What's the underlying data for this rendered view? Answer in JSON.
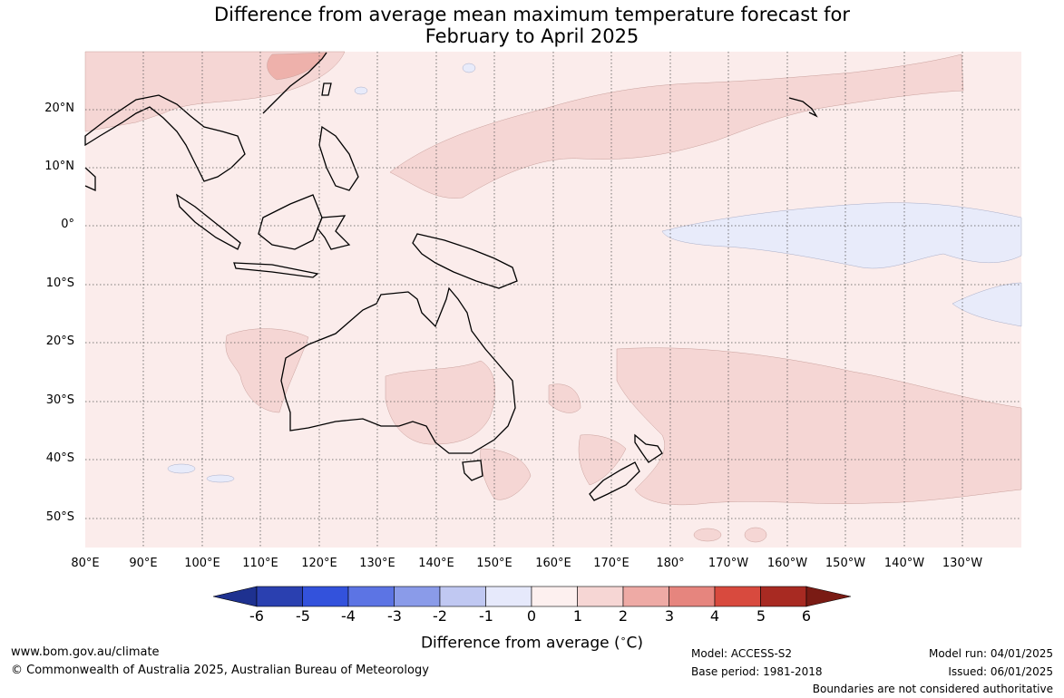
{
  "title_line1": "Difference from average mean maximum temperature forecast for",
  "title_line2": "February to April 2025",
  "lat_labels": [
    "20°N",
    "10°N",
    "0°",
    "10°S",
    "20°S",
    "30°S",
    "40°S",
    "50°S"
  ],
  "lon_labels": [
    "80°E",
    "90°E",
    "100°E",
    "110°E",
    "120°E",
    "130°E",
    "140°E",
    "150°E",
    "160°E",
    "170°E",
    "180°",
    "170°W",
    "160°W",
    "150°W",
    "140°W",
    "130°W"
  ],
  "colorbar": {
    "ticks": [
      "-6",
      "-5",
      "-4",
      "-3",
      "-2",
      "-1",
      "0",
      "1",
      "2",
      "3",
      "4",
      "5",
      "6"
    ],
    "colors": [
      "#1e3190",
      "#2a40b0",
      "#3352dc",
      "#5c74e4",
      "#8a9be9",
      "#c0c8f2",
      "#e6e9fb",
      "#fdf0ef",
      "#f6d6d4",
      "#eeaaa5",
      "#e6857e",
      "#d84a3e",
      "#a82a22",
      "#7a1b14"
    ],
    "label": "Difference from average (",
    "label_unit": "C)",
    "label_degree": "∘"
  },
  "footer": {
    "website": "www.bom.gov.au/climate",
    "copyright": "© Commonwealth of Australia 2025, Australian Bureau of Meteorology",
    "model": "Model: ACCESS-S2",
    "base_period": "Base period: 1981-2018",
    "model_run": "Model run: 04/01/2025",
    "issued": "Issued: 06/01/2025",
    "disclaimer": "Boundaries are not considered authoritative"
  },
  "map_colors": {
    "background": "#fbeceb",
    "warm1": "#f5d6d4",
    "warm2": "#eeb1ab",
    "cool": "#e8ebfa",
    "coast": "#000000"
  }
}
